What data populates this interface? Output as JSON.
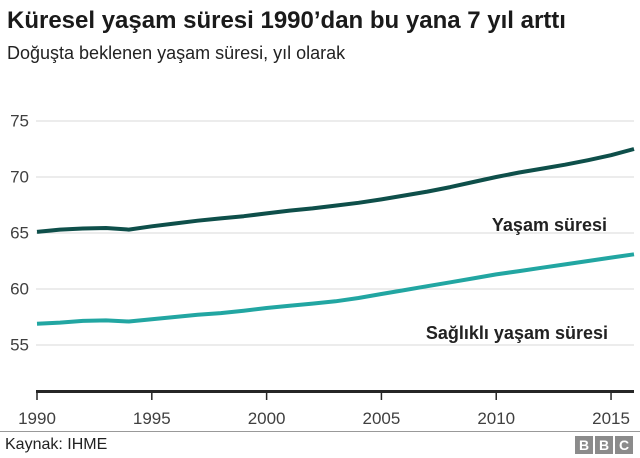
{
  "header": {
    "title": "Küresel yaşam süresi 1990’dan bu yana 7 yıl arttı",
    "subtitle": "Doğuşta beklenen yaşam süresi, yıl olarak"
  },
  "chart_data": {
    "type": "line",
    "x": [
      1990,
      1991,
      1992,
      1993,
      1994,
      1995,
      1996,
      1997,
      1998,
      1999,
      2000,
      2001,
      2002,
      2003,
      2004,
      2005,
      2006,
      2007,
      2008,
      2009,
      2010,
      2011,
      2012,
      2013,
      2014,
      2015,
      2016
    ],
    "series": [
      {
        "name": "Yaşam süresi",
        "color": "#0e4f4a",
        "values": [
          65.1,
          65.3,
          65.4,
          65.45,
          65.3,
          65.6,
          65.85,
          66.1,
          66.3,
          66.5,
          66.75,
          67.0,
          67.2,
          67.45,
          67.7,
          68.0,
          68.35,
          68.7,
          69.1,
          69.55,
          70.0,
          70.4,
          70.75,
          71.1,
          71.5,
          71.95,
          72.5
        ]
      },
      {
        "name": "Sağlıklı yaşam süresi",
        "color": "#22a6a2",
        "values": [
          56.9,
          57.0,
          57.15,
          57.2,
          57.1,
          57.3,
          57.5,
          57.7,
          57.85,
          58.05,
          58.3,
          58.5,
          58.7,
          58.9,
          59.2,
          59.55,
          59.9,
          60.25,
          60.6,
          60.95,
          61.3,
          61.6,
          61.9,
          62.2,
          62.5,
          62.8,
          63.1
        ]
      }
    ],
    "yticks": [
      75,
      70,
      65,
      60,
      55
    ],
    "xticks": [
      1990,
      1995,
      2000,
      2005,
      2010,
      2015
    ],
    "ylim": [
      52.5,
      76
    ],
    "grid": true,
    "legend_position": "inline-annotations",
    "colors": {
      "gridline": "#d8d8d8",
      "axis": "#262626",
      "tick_text": "#404040"
    }
  },
  "footer": {
    "source": "Kaynak: IHME",
    "logo_letters": [
      "B",
      "B",
      "C"
    ]
  }
}
